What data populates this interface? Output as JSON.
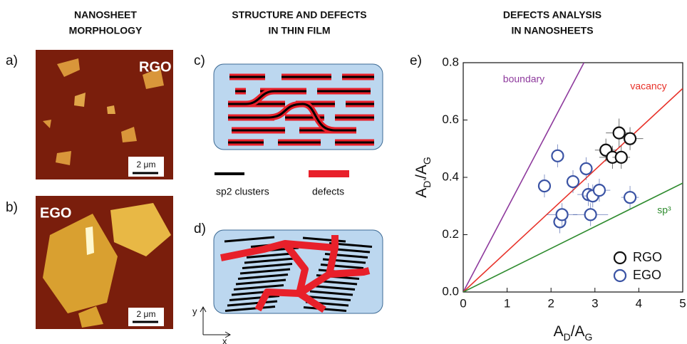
{
  "columns": [
    {
      "title_lines": [
        "NANOSHEET",
        "MORPHOLOGY"
      ]
    },
    {
      "title_lines": [
        "STRUCTURE AND DEFECTS",
        "IN THIN FILM"
      ]
    },
    {
      "title_lines": [
        "DEFECTS ANALYSIS",
        "IN NANOSHEETS"
      ]
    }
  ],
  "panels": {
    "a": {
      "label": "a)",
      "tag": "RGO",
      "scale": "2 μm"
    },
    "b": {
      "label": "b)",
      "tag": "EGO",
      "scale": "2 μm"
    },
    "c": {
      "label": "c)"
    },
    "legend": {
      "clusters": "sp2 clusters",
      "defects": "defects"
    },
    "d": {
      "label": "d)",
      "axis_y": "y",
      "axis_x": "x"
    }
  },
  "chart_data": {
    "type": "scatter",
    "label": "e)",
    "x_label": [
      "A",
      "D",
      "/A",
      "G"
    ],
    "y_label": [
      "A",
      "D'",
      "/A",
      "G"
    ],
    "xlim": [
      0,
      5
    ],
    "ylim": [
      0,
      0.8
    ],
    "xticks": [
      0,
      1,
      2,
      3,
      4,
      5
    ],
    "yticks": [
      {
        "value": 0,
        "label": "0.0"
      },
      {
        "value": 0.2,
        "label": "0.2"
      },
      {
        "value": 0.4,
        "label": "0.4"
      },
      {
        "value": 0.6,
        "label": "0.6"
      },
      {
        "value": 0.8,
        "label": "0.8"
      }
    ],
    "lines": [
      {
        "name": "boundary",
        "color": "#8e3a9d",
        "x": [
          0,
          2.75
        ],
        "values": [
          0,
          0.8
        ]
      },
      {
        "name": "vacancy",
        "color": "#e8322a",
        "x": [
          0,
          5
        ],
        "values": [
          0,
          0.71
        ]
      },
      {
        "name": "sp³",
        "color": "#2e8b2e",
        "x": [
          0,
          5
        ],
        "values": [
          0,
          0.38
        ]
      }
    ],
    "series": [
      {
        "name": "RGO",
        "color": "#111111",
        "x": [
          3.25,
          3.4,
          3.55,
          3.6,
          3.8
        ],
        "values": [
          0.495,
          0.47,
          0.555,
          0.47,
          0.535
        ],
        "xerr": [
          0.25,
          0.3,
          0.3,
          0.2,
          0.3
        ],
        "yerr": [
          0.04,
          0.04,
          0.05,
          0.04,
          0.04
        ]
      },
      {
        "name": "EGO",
        "color": "#3a53a4",
        "x": [
          1.85,
          2.15,
          2.2,
          2.25,
          2.5,
          2.8,
          2.85,
          2.9,
          2.95,
          3.1,
          3.8
        ],
        "values": [
          0.37,
          0.475,
          0.245,
          0.27,
          0.385,
          0.43,
          0.34,
          0.27,
          0.335,
          0.355,
          0.33
        ],
        "xerr": [
          0.1,
          0.1,
          0.15,
          0.35,
          0.15,
          0.15,
          0.25,
          0.4,
          0.2,
          0.25,
          0.2
        ],
        "yerr": [
          0.04,
          0.04,
          0.04,
          0.04,
          0.04,
          0.04,
          0.04,
          0.04,
          0.04,
          0.04,
          0.04
        ]
      }
    ],
    "legend": "lower right"
  }
}
